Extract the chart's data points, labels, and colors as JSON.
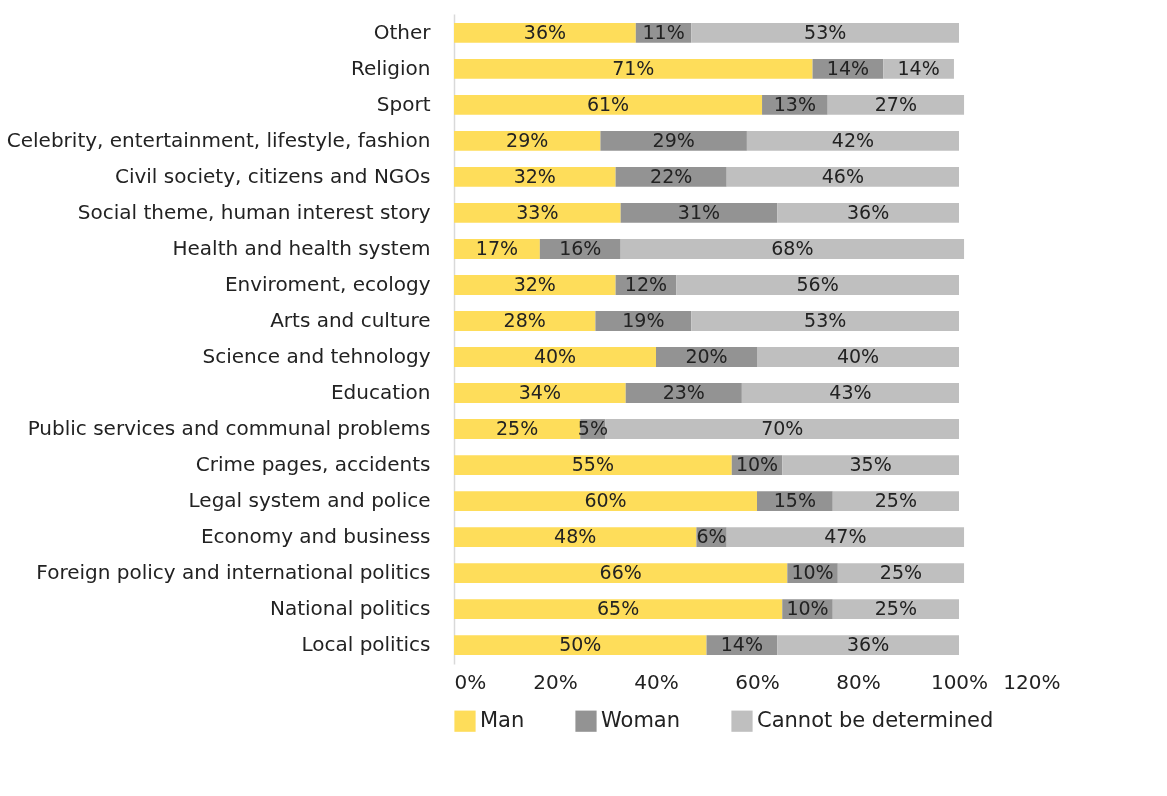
{
  "chart_data": {
    "type": "bar",
    "orientation": "horizontal",
    "stacked": true,
    "legend": "bottom",
    "grid": false,
    "categories": [
      "Other",
      "Religion",
      "Sport",
      "Celebrity, entertainment, lifestyle, fashion",
      "Civil society, citizens and NGOs",
      "Social theme, human interest story",
      "Health and health system",
      "Enviroment, ecology",
      "Arts and culture",
      "Science and tehnology",
      "Education",
      "Public services and communal problems",
      "Crime pages, accidents",
      "Legal system and police",
      "Economy and business",
      "Foreign policy and international politics",
      "National politics",
      "Local politics"
    ],
    "xlim": [
      0,
      120
    ],
    "xticks": [
      {
        "value": 0,
        "label": "0%"
      },
      {
        "value": 20,
        "label": "20%"
      },
      {
        "value": 40,
        "label": "40%"
      },
      {
        "value": 60,
        "label": "60%"
      },
      {
        "value": 80,
        "label": "80%"
      },
      {
        "value": 100,
        "label": "100%"
      },
      {
        "value": 120,
        "label": "120%"
      }
    ],
    "series": [
      {
        "name": "Man",
        "color": "#fedd5a",
        "values": [
          36,
          71,
          61,
          29,
          32,
          33,
          17,
          32,
          28,
          40,
          34,
          25,
          55,
          60,
          48,
          66,
          65,
          50
        ],
        "value_labels": [
          "36%",
          "71%",
          "61%",
          "29%",
          "32%",
          "33%",
          "17%",
          "32%",
          "28%",
          "40%",
          "34%",
          "25%",
          "55%",
          "60%",
          "48%",
          "66%",
          "65%",
          "50%"
        ]
      },
      {
        "name": "Woman",
        "color": "#939393",
        "values": [
          11,
          14,
          13,
          29,
          22,
          31,
          16,
          12,
          19,
          20,
          23,
          5,
          10,
          15,
          6,
          10,
          10,
          14
        ],
        "value_labels": [
          "11%",
          "14%",
          "13%",
          "29%",
          "22%",
          "31%",
          "16%",
          "12%",
          "19%",
          "20%",
          "23%",
          "5%",
          "10%",
          "15%",
          "6%",
          "10%",
          "10%",
          "14%"
        ]
      },
      {
        "name": "Cannot be determined",
        "color": "#bfbfbf",
        "values": [
          53,
          14,
          27,
          42,
          46,
          36,
          68,
          56,
          53,
          40,
          43,
          70,
          35,
          25,
          47,
          25,
          25,
          36
        ],
        "value_labels": [
          "53%",
          "14%",
          "27%",
          "42%",
          "46%",
          "36%",
          "68%",
          "56%",
          "53%",
          "40%",
          "43%",
          "70%",
          "35%",
          "25%",
          "47%",
          "25%",
          "25%",
          "36%"
        ]
      }
    ]
  }
}
